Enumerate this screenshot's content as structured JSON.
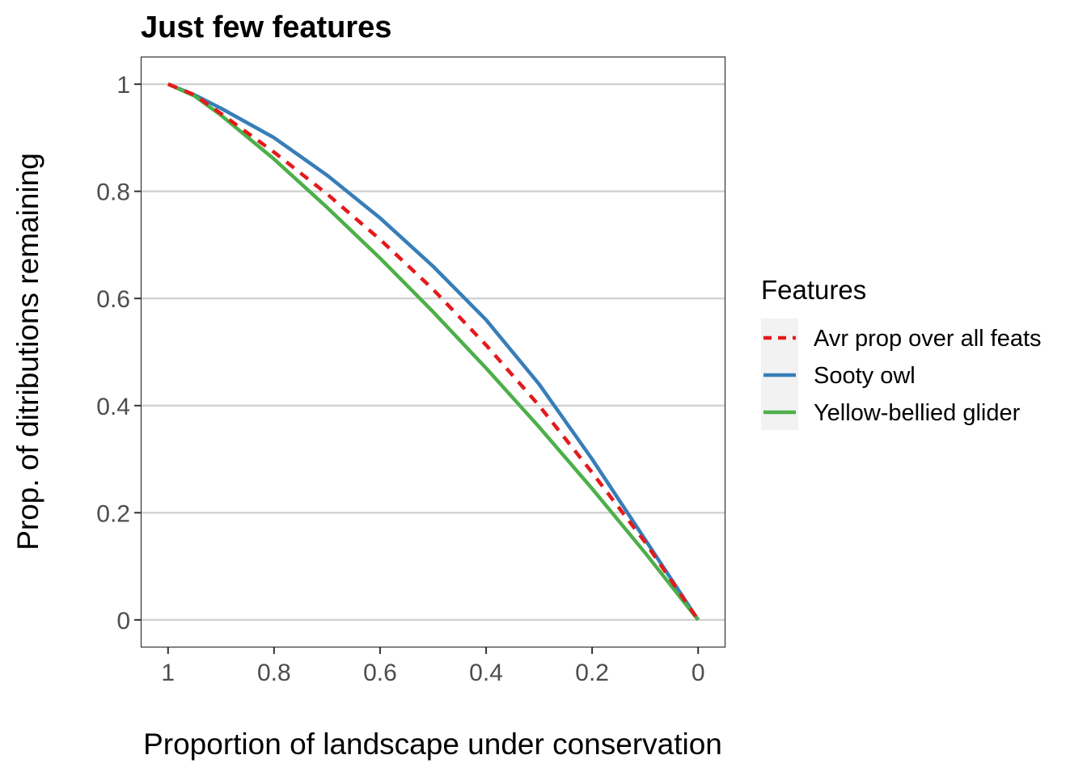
{
  "chart_data": {
    "type": "line",
    "title": "Just few features",
    "xlabel": "Proportion of landscape under conservation",
    "ylabel": "Prop. of ditributions remaining",
    "xlim": [
      1.05,
      -0.05
    ],
    "ylim": [
      -0.05,
      1.05
    ],
    "x_reversed": true,
    "xticks": [
      1,
      0.8,
      0.6,
      0.4,
      0.2,
      0
    ],
    "xtick_labels": [
      "1",
      "0.8",
      "0.6",
      "0.4",
      "0.2",
      "0"
    ],
    "yticks": [
      0,
      0.2,
      0.4,
      0.6,
      0.8,
      1
    ],
    "ytick_labels": [
      "0",
      "0.2",
      "0.4",
      "0.6",
      "0.8",
      "1"
    ],
    "grid": "horizontal major",
    "legend": {
      "title": "Features",
      "placement": "right",
      "entries": [
        "Avr prop over all feats",
        "Sooty owl",
        "Yellow-bellied glider"
      ]
    },
    "series": [
      {
        "name": "Avr prop over all feats",
        "color": "#e41a1c",
        "dash": "dashed",
        "x": [
          1.0,
          0.95,
          0.9,
          0.8,
          0.7,
          0.6,
          0.5,
          0.4,
          0.3,
          0.2,
          0.1,
          0.0
        ],
        "y": [
          1.0,
          0.98,
          0.945,
          0.873,
          0.795,
          0.71,
          0.617,
          0.513,
          0.4,
          0.275,
          0.145,
          0.0
        ]
      },
      {
        "name": "Sooty owl",
        "color": "#377eb8",
        "dash": "solid",
        "x": [
          1.0,
          0.95,
          0.9,
          0.8,
          0.7,
          0.6,
          0.5,
          0.4,
          0.3,
          0.2,
          0.1,
          0.0
        ],
        "y": [
          1.0,
          0.98,
          0.955,
          0.9,
          0.83,
          0.75,
          0.66,
          0.56,
          0.44,
          0.3,
          0.15,
          0.0
        ]
      },
      {
        "name": "Yellow-bellied glider",
        "color": "#4daf4a",
        "dash": "solid",
        "x": [
          1.0,
          0.95,
          0.9,
          0.8,
          0.7,
          0.6,
          0.5,
          0.4,
          0.3,
          0.2,
          0.1,
          0.0
        ],
        "y": [
          1.0,
          0.978,
          0.942,
          0.86,
          0.77,
          0.675,
          0.575,
          0.47,
          0.36,
          0.245,
          0.125,
          0.0
        ]
      }
    ]
  }
}
